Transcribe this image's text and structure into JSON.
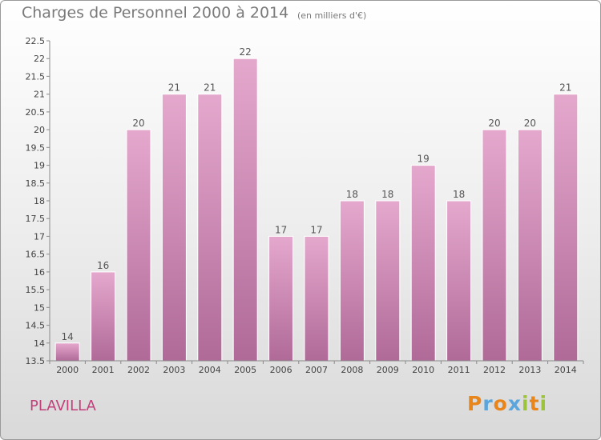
{
  "header": {
    "title": "Charges de Personnel 2000 à 2014",
    "subtitle": "(en milliers d'€)"
  },
  "commune": "PLAVILLA",
  "logo": {
    "letters": [
      "P",
      "r",
      "o",
      "x",
      "i",
      "t",
      "i"
    ],
    "colors": [
      "#e8851b",
      "#5aa5dc",
      "#e8851b",
      "#5aa5dc",
      "#9cc43a",
      "#e8851b",
      "#9cc43a"
    ]
  },
  "colors": {
    "bar_top": "#e5a8cd",
    "bar_bottom": "#b06a98",
    "title": "#7a7a7a",
    "commune": "#c2407a"
  },
  "chart_data": {
    "type": "bar",
    "title": "Charges de Personnel 2000 à 2014",
    "subtitle": "(en milliers d'€)",
    "categories": [
      "2000",
      "2001",
      "2002",
      "2003",
      "2004",
      "2005",
      "2006",
      "2007",
      "2008",
      "2009",
      "2010",
      "2011",
      "2012",
      "2013",
      "2014"
    ],
    "values": [
      14,
      16,
      20,
      21,
      21,
      22,
      17,
      17,
      18,
      18,
      19,
      18,
      20,
      20,
      21
    ],
    "data_labels": [
      "14",
      "16",
      "20",
      "21",
      "21",
      "22",
      "17",
      "17",
      "18",
      "18",
      "19",
      "18",
      "20",
      "20",
      "21"
    ],
    "ylim": [
      13.5,
      22.5
    ],
    "yticks": [
      "13.5",
      "14",
      "14.5",
      "15",
      "15.5",
      "16",
      "16.5",
      "17",
      "17.5",
      "18",
      "18.5",
      "19",
      "19.5",
      "20",
      "20.5",
      "21",
      "21.5",
      "22",
      "22.5"
    ],
    "grid": false,
    "legend": "none"
  }
}
